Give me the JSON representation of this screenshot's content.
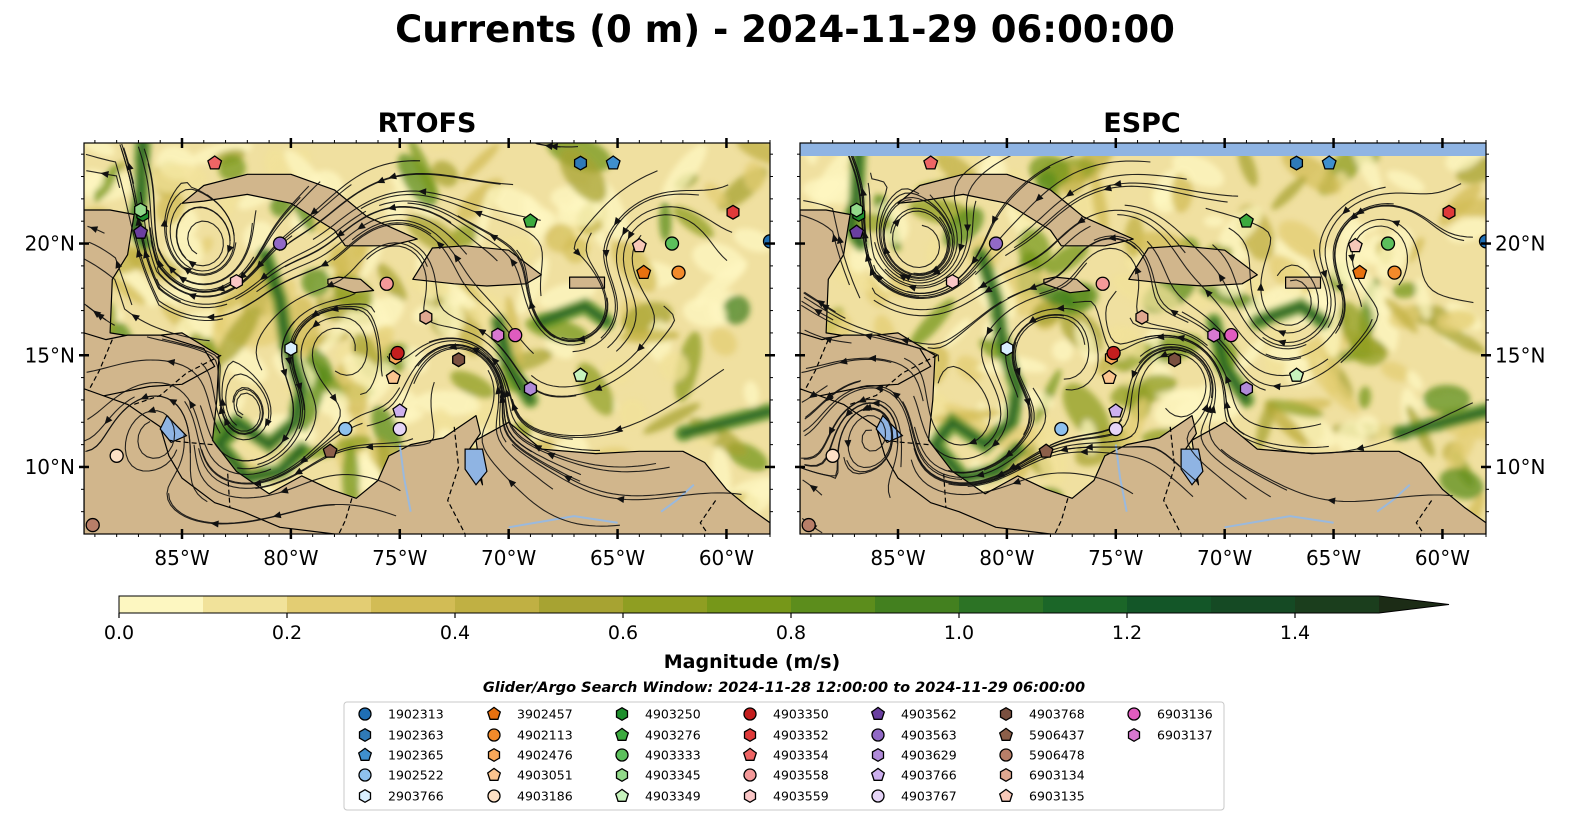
{
  "figure": {
    "title": "Currents (0 m) - 2024-11-29 06:00:00",
    "search_window": "Glider/Argo Search Window: 2024-11-28 12:00:00 to 2024-11-29 06:00:00"
  },
  "chart_data": {
    "type": "heatmap",
    "panels": [
      {
        "name": "RTOFS",
        "title": "RTOFS",
        "top_band_missing": false
      },
      {
        "name": "ESPC",
        "title": "ESPC",
        "top_band_missing": true
      }
    ],
    "xlim": [
      -89.5,
      -58
    ],
    "ylim": [
      7,
      24.5
    ],
    "x_ticks": [
      {
        "value": -85,
        "label": "85°W"
      },
      {
        "value": -80,
        "label": "80°W"
      },
      {
        "value": -75,
        "label": "75°W"
      },
      {
        "value": -70,
        "label": "70°W"
      },
      {
        "value": -65,
        "label": "65°W"
      },
      {
        "value": -60,
        "label": "60°W"
      }
    ],
    "y_ticks": [
      {
        "value": 10,
        "label": "10°N"
      },
      {
        "value": 15,
        "label": "15°N"
      },
      {
        "value": 20,
        "label": "20°N"
      }
    ],
    "colorbar": {
      "label": "Magnitude (m/s)",
      "min": 0.0,
      "max": 1.5,
      "extend": "max",
      "ticks": [
        {
          "value": 0.0,
          "label": "0.0"
        },
        {
          "value": 0.2,
          "label": "0.2"
        },
        {
          "value": 0.4,
          "label": "0.4"
        },
        {
          "value": 0.6,
          "label": "0.6"
        },
        {
          "value": 0.8,
          "label": "0.8"
        },
        {
          "value": 1.0,
          "label": "1.0"
        },
        {
          "value": 1.2,
          "label": "1.2"
        },
        {
          "value": 1.4,
          "label": "1.4"
        }
      ],
      "colors": [
        "#fdf7c1",
        "#f1e29a",
        "#e3cd73",
        "#d2bc55",
        "#c0b043",
        "#a7a332",
        "#8f9e22",
        "#769719",
        "#5c8d1c",
        "#43801f",
        "#2c7325",
        "#1b6628",
        "#135628",
        "#154a24",
        "#1b3e1d",
        "#1c2c16"
      ]
    },
    "land_color": "#d1b68c",
    "lake_color": "#8fb4e3",
    "floats": [
      {
        "id": "1902313",
        "marker": "circle",
        "color": "#1f6fb4",
        "lon": -58,
        "lat": 20.1
      },
      {
        "id": "1902363",
        "marker": "hexagon",
        "color": "#2f7ab8",
        "lon": -66.7,
        "lat": 23.6
      },
      {
        "id": "1902365",
        "marker": "pentagon",
        "color": "#3f8fce",
        "lon": -65.2,
        "lat": 23.6
      },
      {
        "id": "1902522",
        "marker": "circle",
        "color": "#8ec1ee",
        "lon": -77.5,
        "lat": 11.7
      },
      {
        "id": "2903766",
        "marker": "hexagon",
        "color": "#d9efff",
        "lon": -80,
        "lat": 15.3
      },
      {
        "id": "3902457",
        "marker": "pentagon",
        "color": "#e8710f",
        "lon": -63.8,
        "lat": 18.7
      },
      {
        "id": "4902113",
        "marker": "circle",
        "color": "#f28a2b",
        "lon": -62.2,
        "lat": 18.7
      },
      {
        "id": "4902476",
        "marker": "hexagon",
        "color": "#f8a85a",
        "lon": -75.2,
        "lat": 14.9
      },
      {
        "id": "4903051",
        "marker": "pentagon",
        "color": "#fbc58f",
        "lon": -75.3,
        "lat": 14.0
      },
      {
        "id": "4903186",
        "marker": "circle",
        "color": "#fde0c5",
        "lon": -88,
        "lat": 10.5
      },
      {
        "id": "4903250",
        "marker": "hexagon",
        "color": "#1e8f2d",
        "lon": -86.8,
        "lat": 21.3
      },
      {
        "id": "4903276",
        "marker": "pentagon",
        "color": "#3caa3f",
        "lon": -69,
        "lat": 21.0
      },
      {
        "id": "4903333",
        "marker": "circle",
        "color": "#5cc05c",
        "lon": -62.5,
        "lat": 20.0
      },
      {
        "id": "4903345",
        "marker": "hexagon",
        "color": "#92d98a",
        "lon": -86.9,
        "lat": 21.5
      },
      {
        "id": "4903349",
        "marker": "pentagon",
        "color": "#c7f3bd",
        "lon": -66.7,
        "lat": 14.1
      },
      {
        "id": "4903350",
        "marker": "circle",
        "color": "#c41e1e",
        "lon": -75.1,
        "lat": 15.1
      },
      {
        "id": "4903352",
        "marker": "hexagon",
        "color": "#df3a3a",
        "lon": -59.7,
        "lat": 21.4
      },
      {
        "id": "4903354",
        "marker": "pentagon",
        "color": "#ef6565",
        "lon": -83.5,
        "lat": 23.6
      },
      {
        "id": "4903558",
        "marker": "circle",
        "color": "#f49999",
        "lon": -75.6,
        "lat": 18.2
      },
      {
        "id": "4903559",
        "marker": "hexagon",
        "color": "#f9c6c6",
        "lon": -82.5,
        "lat": 18.3
      },
      {
        "id": "4903562",
        "marker": "pentagon",
        "color": "#6a3fa0",
        "lon": -86.9,
        "lat": 20.5
      },
      {
        "id": "4903563",
        "marker": "circle",
        "color": "#9169c6",
        "lon": -80.5,
        "lat": 20.0
      },
      {
        "id": "4903629",
        "marker": "hexagon",
        "color": "#b08ad8",
        "lon": -69,
        "lat": 13.5
      },
      {
        "id": "4903766",
        "marker": "pentagon",
        "color": "#cdb0ee",
        "lon": -75.0,
        "lat": 12.5
      },
      {
        "id": "4903767",
        "marker": "circle",
        "color": "#e6d5f7",
        "lon": -75.0,
        "lat": 11.7
      },
      {
        "id": "4903768",
        "marker": "hexagon",
        "color": "#7a5040",
        "lon": -72.3,
        "lat": 14.8
      },
      {
        "id": "5906437",
        "marker": "pentagon",
        "color": "#8c5f4a",
        "lon": -78.2,
        "lat": 10.7
      },
      {
        "id": "5906478",
        "marker": "circle",
        "color": "#b87e68",
        "lon": -89.1,
        "lat": 7.4
      },
      {
        "id": "6903134",
        "marker": "hexagon",
        "color": "#e0a890",
        "lon": -73.8,
        "lat": 16.7
      },
      {
        "id": "6903135",
        "marker": "pentagon",
        "color": "#f7c8b8",
        "lon": -64.0,
        "lat": 19.9
      },
      {
        "id": "6903136",
        "marker": "circle",
        "color": "#e05cbf",
        "lon": -69.7,
        "lat": 15.9
      },
      {
        "id": "6903137",
        "marker": "hexagon",
        "color": "#d878d0",
        "lon": -70.5,
        "lat": 15.9
      }
    ]
  }
}
